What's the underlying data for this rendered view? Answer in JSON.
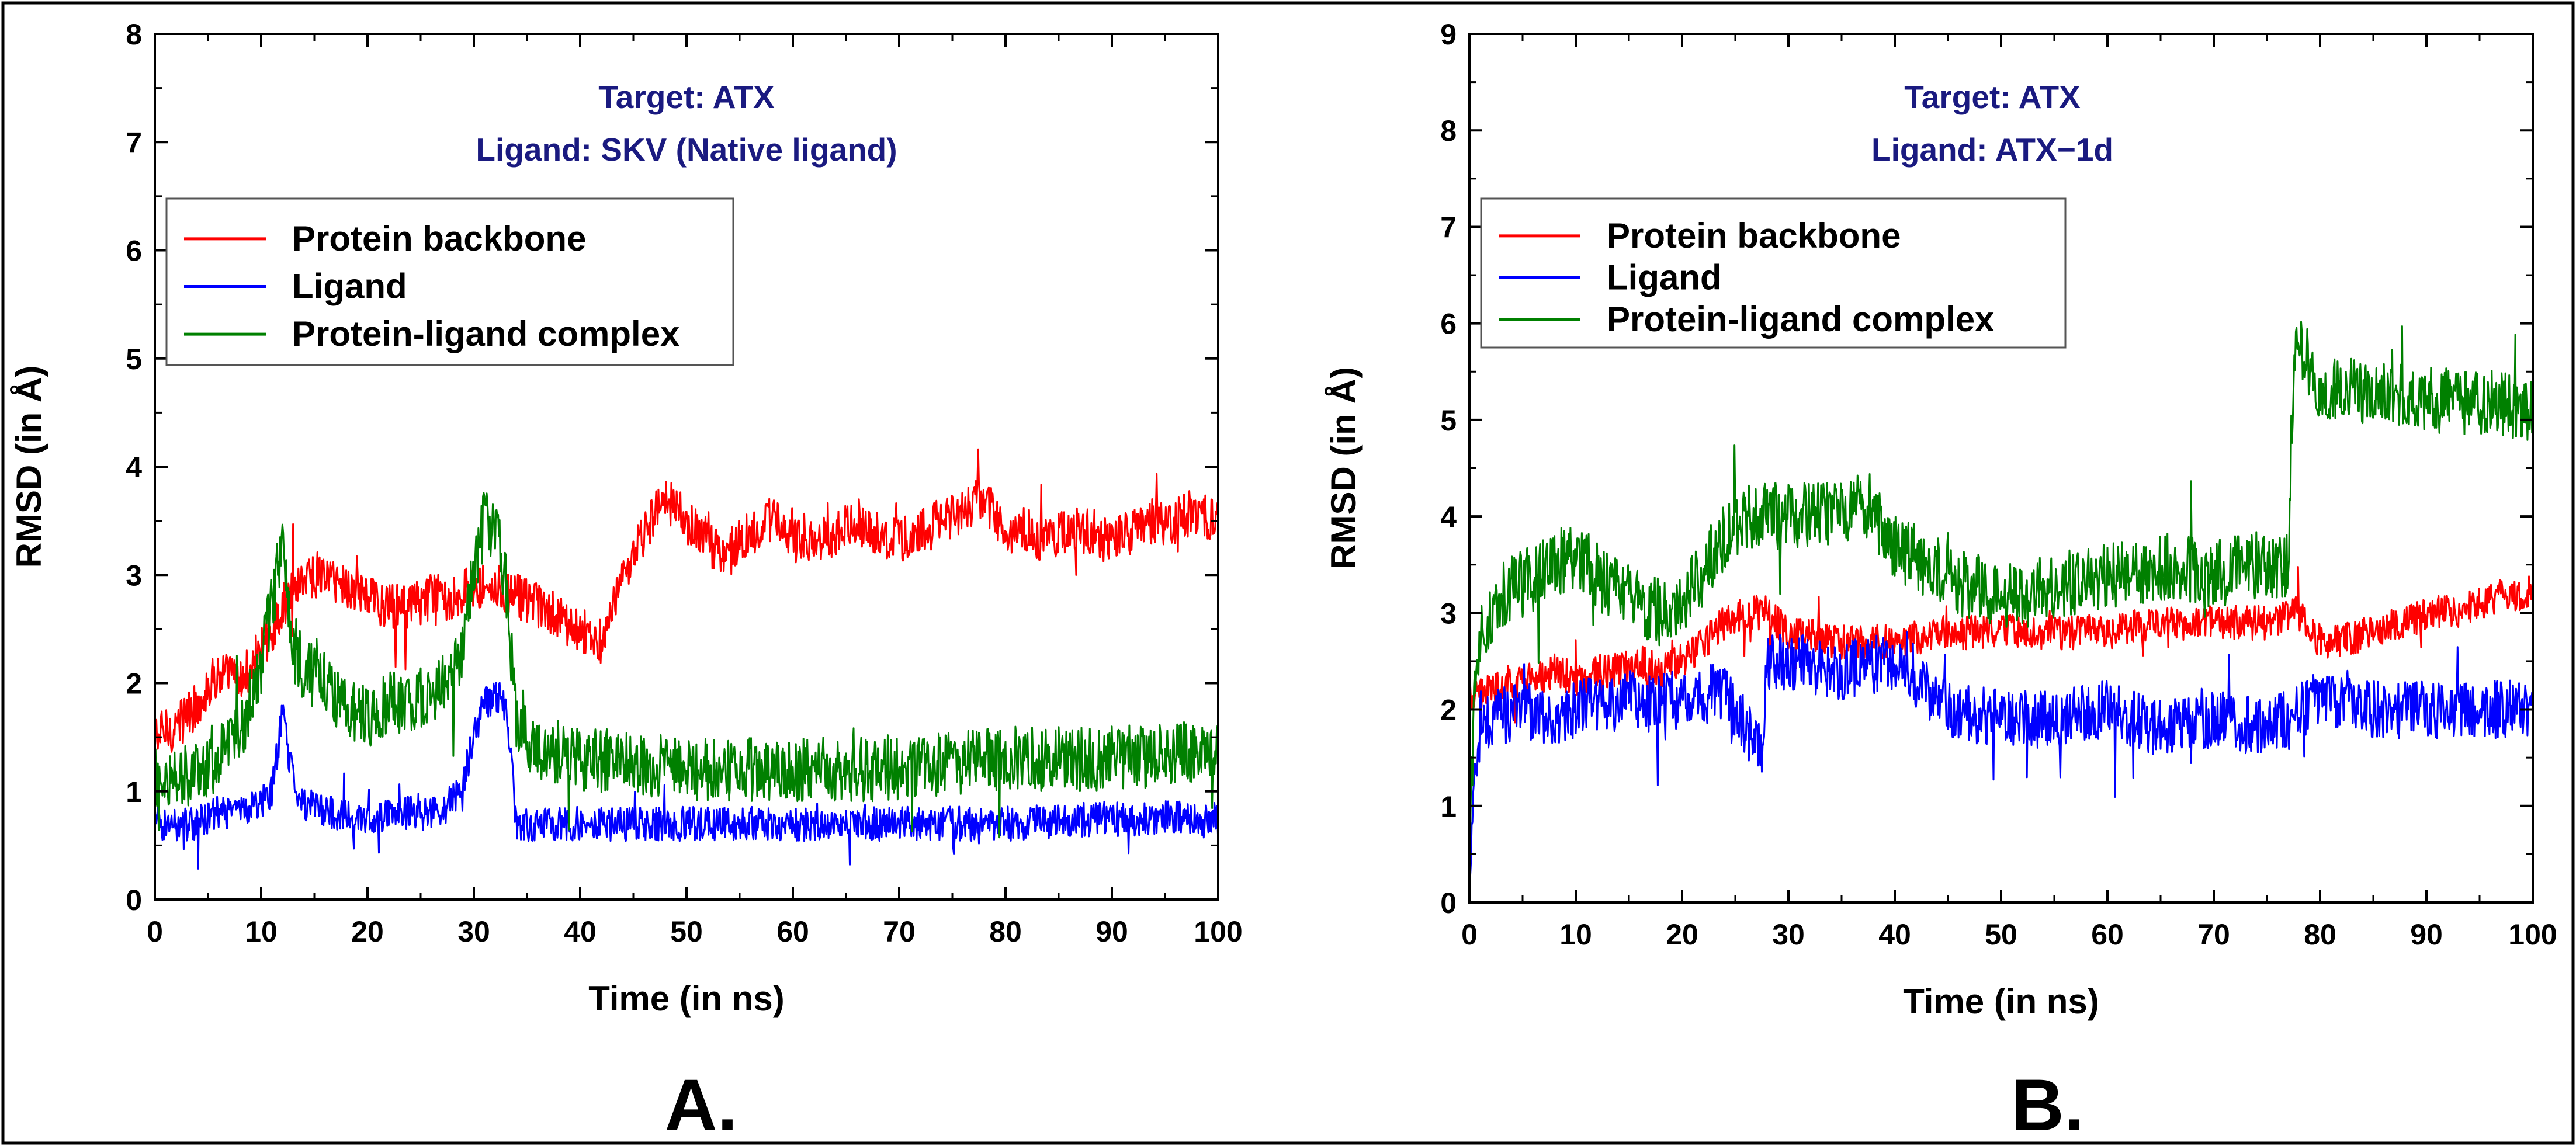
{
  "colors": {
    "backbone": "#ff0000",
    "ligand": "#0000ff",
    "complex": "#008000",
    "title": "#1a1a80"
  },
  "chart_data": [
    {
      "type": "line",
      "panel_label": "A.",
      "title_lines": [
        "Target: ATX",
        "Ligand: SKV (Native ligand)"
      ],
      "xlabel": "Time (in ns)",
      "ylabel": "RMSD (in Å)",
      "xlim": [
        0,
        100
      ],
      "ylim": [
        0,
        8
      ],
      "xticks": [
        "0",
        "10",
        "20",
        "30",
        "40",
        "50",
        "60",
        "70",
        "80",
        "90",
        "100"
      ],
      "yticks": [
        "0",
        "1",
        "2",
        "3",
        "4",
        "5",
        "6",
        "7",
        "8"
      ],
      "legend_position": "upper-left",
      "series": [
        {
          "name": "Protein backbone",
          "color_key": "backbone",
          "x": [
            0,
            2,
            4,
            6,
            8,
            10,
            12,
            14,
            16,
            18,
            20,
            22,
            24,
            26,
            28,
            30,
            32,
            34,
            36,
            38,
            40,
            42,
            44,
            46,
            48,
            50,
            52,
            54,
            56,
            58,
            60,
            62,
            64,
            66,
            68,
            70,
            72,
            74,
            76,
            78,
            80,
            82,
            84,
            86,
            88,
            90,
            92,
            94,
            96,
            98,
            100
          ],
          "y": [
            1.5,
            1.6,
            1.8,
            2.1,
            2.0,
            2.3,
            2.7,
            3.0,
            3.0,
            2.9,
            2.8,
            2.7,
            2.7,
            2.8,
            2.8,
            2.9,
            2.9,
            2.8,
            2.7,
            2.6,
            2.5,
            2.4,
            2.9,
            3.4,
            3.7,
            3.5,
            3.3,
            3.2,
            3.4,
            3.5,
            3.4,
            3.3,
            3.4,
            3.5,
            3.4,
            3.3,
            3.4,
            3.5,
            3.6,
            3.7,
            3.4,
            3.4,
            3.3,
            3.4,
            3.4,
            3.3,
            3.4,
            3.5,
            3.5,
            3.6,
            3.5
          ],
          "noise": 0.22
        },
        {
          "name": "Ligand",
          "color_key": "ligand",
          "x": [
            0,
            2,
            4,
            6,
            8,
            10,
            11,
            12,
            13,
            14,
            16,
            18,
            20,
            22,
            24,
            26,
            28,
            29,
            30,
            31,
            32,
            33,
            34,
            36,
            40,
            50,
            60,
            70,
            80,
            90,
            100
          ],
          "y": [
            0.7,
            0.7,
            0.7,
            0.8,
            0.8,
            0.9,
            1.0,
            1.7,
            1.1,
            0.9,
            0.8,
            0.8,
            0.7,
            0.8,
            0.8,
            0.8,
            0.9,
            1.1,
            1.5,
            1.8,
            1.9,
            1.8,
            0.7,
            0.7,
            0.7,
            0.7,
            0.7,
            0.7,
            0.7,
            0.75,
            0.75
          ],
          "noise": 0.16
        },
        {
          "name": "Protein-ligand complex",
          "color_key": "complex",
          "x": [
            0,
            2,
            4,
            6,
            8,
            10,
            11,
            12,
            13,
            14,
            16,
            18,
            20,
            22,
            24,
            26,
            28,
            29,
            30,
            31,
            32,
            33,
            34,
            36,
            40,
            50,
            60,
            70,
            80,
            90,
            100
          ],
          "y": [
            1.1,
            1.1,
            1.2,
            1.3,
            1.5,
            2.2,
            2.7,
            3.3,
            2.4,
            2.1,
            2.0,
            1.8,
            1.7,
            1.8,
            1.8,
            1.9,
            2.0,
            2.4,
            3.0,
            3.5,
            3.4,
            3.0,
            1.6,
            1.4,
            1.3,
            1.2,
            1.2,
            1.2,
            1.3,
            1.3,
            1.4
          ],
          "noise": 0.3
        }
      ]
    },
    {
      "type": "line",
      "panel_label": "B.",
      "title_lines": [
        "Target: ATX",
        "Ligand:  ATX−1d"
      ],
      "xlabel": "Time (in ns)",
      "ylabel": "RMSD (in Å)",
      "xlim": [
        0,
        100
      ],
      "ylim": [
        0,
        9
      ],
      "xticks": [
        "0",
        "10",
        "20",
        "30",
        "40",
        "50",
        "60",
        "70",
        "80",
        "90",
        "100"
      ],
      "yticks": [
        "0",
        "1",
        "2",
        "3",
        "4",
        "5",
        "6",
        "7",
        "8",
        "9"
      ],
      "legend_position": "upper-left",
      "series": [
        {
          "name": "Protein backbone",
          "color_key": "backbone",
          "x": [
            0,
            2,
            4,
            6,
            8,
            10,
            12,
            14,
            16,
            18,
            20,
            22,
            24,
            26,
            28,
            30,
            35,
            40,
            45,
            50,
            55,
            60,
            65,
            70,
            75,
            78,
            80,
            82,
            85,
            88,
            90,
            92,
            95,
            98,
            100
          ],
          "y": [
            2.1,
            2.2,
            2.3,
            2.3,
            2.4,
            2.3,
            2.4,
            2.4,
            2.5,
            2.4,
            2.5,
            2.7,
            2.9,
            3.0,
            3.0,
            2.8,
            2.7,
            2.7,
            2.8,
            2.8,
            2.8,
            2.8,
            2.9,
            2.9,
            2.9,
            3.0,
            2.7,
            2.7,
            2.8,
            2.9,
            3.0,
            3.0,
            3.1,
            3.2,
            3.2
          ],
          "noise": 0.18
        },
        {
          "name": "Ligand",
          "color_key": "ligand",
          "x": [
            0,
            0.5,
            1,
            2,
            5,
            8,
            10,
            15,
            20,
            24,
            26,
            27.5,
            28,
            30,
            35,
            40,
            42,
            45,
            50,
            55,
            60,
            65,
            70,
            75,
            80,
            85,
            90,
            95,
            100
          ],
          "y": [
            0.3,
            1.4,
            1.8,
            1.9,
            2.0,
            1.9,
            2.0,
            2.1,
            2.1,
            2.2,
            1.8,
            1.5,
            2.5,
            2.5,
            2.4,
            2.5,
            2.3,
            2.0,
            1.9,
            1.9,
            2.0,
            1.8,
            1.9,
            1.8,
            2.1,
            2.0,
            2.0,
            2.0,
            2.0
          ],
          "noise": 0.3
        },
        {
          "name": "Protein-ligand complex",
          "color_key": "complex",
          "x": [
            0,
            0.5,
            1,
            3,
            5,
            8,
            10,
            13,
            16,
            18,
            20,
            22,
            24,
            26,
            28,
            30,
            33,
            36,
            38,
            40,
            43,
            46,
            50,
            53,
            56,
            60,
            63,
            66,
            70,
            74,
            77,
            77.5,
            78,
            80,
            85,
            90,
            95,
            100
          ],
          "y": [
            0.4,
            2.3,
            2.8,
            3.2,
            3.3,
            3.5,
            3.6,
            3.3,
            3.1,
            3.0,
            3.1,
            3.4,
            3.8,
            4.0,
            4.0,
            4.0,
            4.0,
            4.1,
            4.0,
            3.7,
            3.5,
            3.3,
            3.2,
            3.2,
            3.3,
            3.4,
            3.4,
            3.5,
            3.4,
            3.5,
            3.5,
            5.6,
            5.8,
            5.3,
            5.3,
            5.2,
            5.2,
            5.1
          ],
          "noise": 0.35
        }
      ]
    }
  ]
}
